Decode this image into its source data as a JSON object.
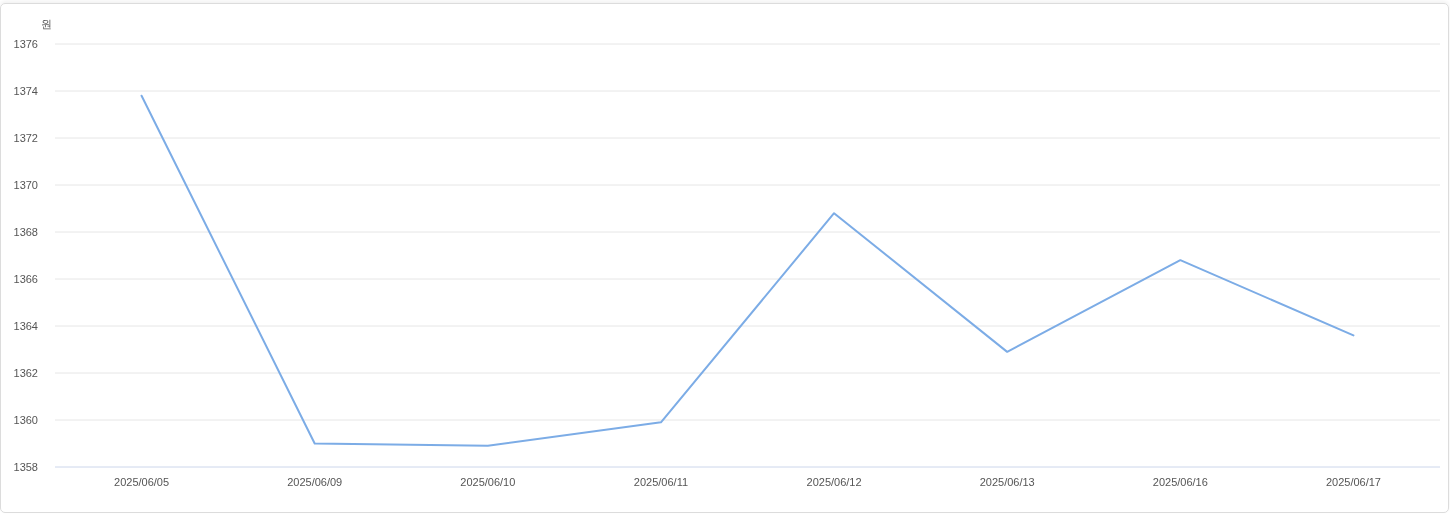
{
  "chart_data": {
    "type": "line",
    "ylabel": "원",
    "categories": [
      "2025/06/05",
      "2025/06/09",
      "2025/06/10",
      "2025/06/11",
      "2025/06/12",
      "2025/06/13",
      "2025/06/16",
      "2025/06/17"
    ],
    "series": [
      {
        "color": "#7cace6",
        "values": [
          1373.8,
          1359.0,
          1358.9,
          1359.9,
          1368.8,
          1362.9,
          1366.8,
          1363.6
        ]
      }
    ],
    "ylim": [
      1358,
      1376
    ],
    "yticks": [
      1358,
      1360,
      1362,
      1364,
      1366,
      1368,
      1370,
      1372,
      1374,
      1376
    ],
    "grid": "y",
    "line_style": "solid"
  }
}
